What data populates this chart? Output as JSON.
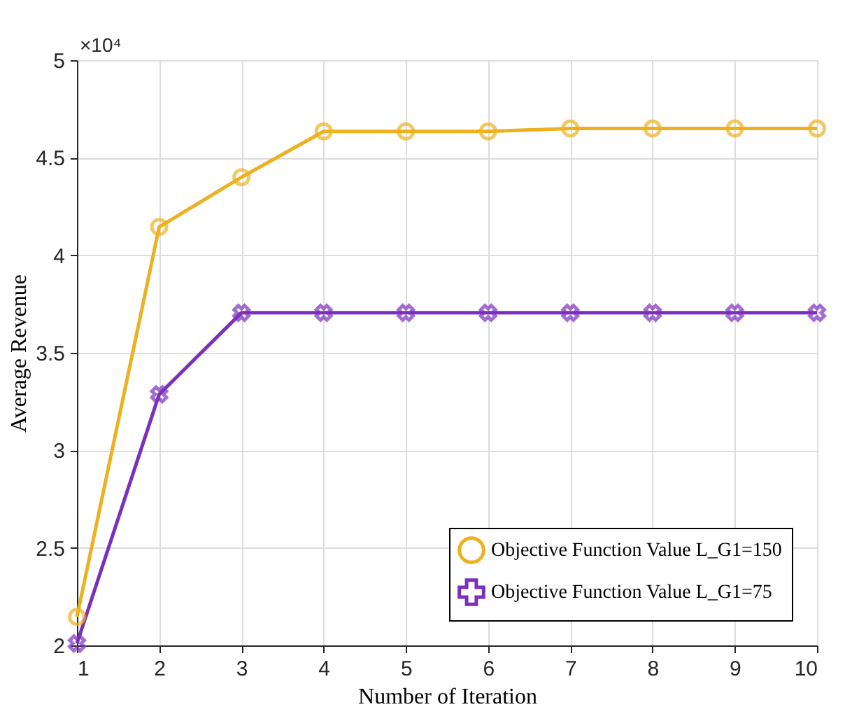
{
  "chart_data": {
    "type": "line",
    "xlabel": "Number of Iteration",
    "ylabel": "Average Revenue",
    "x": [
      1,
      2,
      3,
      4,
      5,
      6,
      7,
      8,
      9,
      10
    ],
    "series": [
      {
        "name": "Objective Function Value L_G1=150",
        "color": "#edb120",
        "marker": "circle",
        "values": [
          2.146,
          4.145,
          4.4,
          4.635,
          4.635,
          4.635,
          4.65,
          4.65,
          4.65,
          4.65
        ]
      },
      {
        "name": "Objective Function Value L_G1=75",
        "color": "#7b2fbf",
        "marker": "cross",
        "values": [
          2.01,
          3.287,
          3.705,
          3.705,
          3.705,
          3.705,
          3.705,
          3.705,
          3.705,
          3.705
        ]
      }
    ],
    "xlim": [
      1,
      10
    ],
    "xticks": [
      1,
      2,
      3,
      4,
      5,
      6,
      7,
      8,
      9,
      10
    ],
    "ylim": [
      2,
      5
    ],
    "yticks": [
      2,
      2.5,
      3,
      3.5,
      4,
      4.5,
      5
    ],
    "annotations": [
      "×10⁴"
    ],
    "grid": true,
    "legend": "bottom right",
    "line_style": "solid"
  }
}
